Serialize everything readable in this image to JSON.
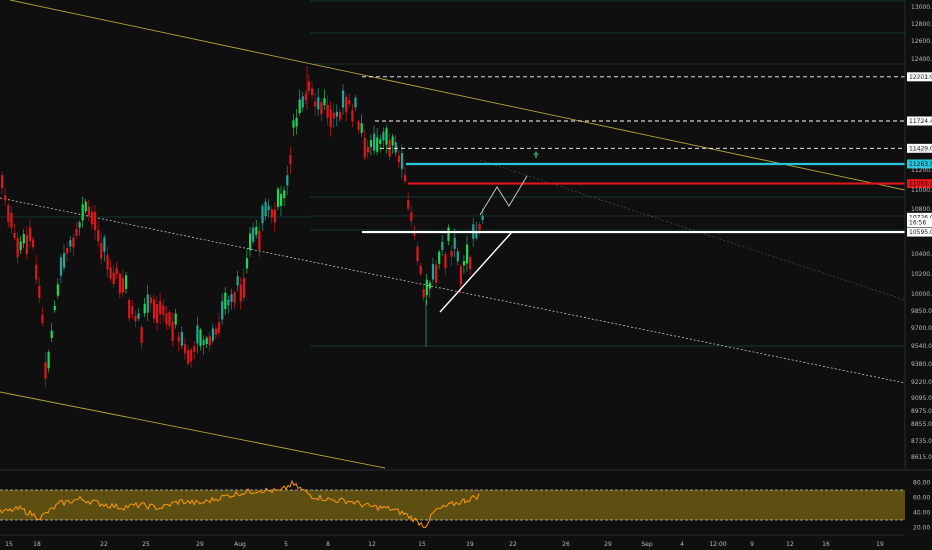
{
  "chart_data": {
    "type": "candlestick",
    "instrument": "BTCUSD",
    "price_axis": {
      "ticks": [
        "13000.0",
        "12800.0",
        "12600.0",
        "12400.0",
        "12200.0",
        "11400.0",
        "11200.0",
        "11000.0",
        "10800.0",
        "10400.0",
        "10200.0",
        "10000.0",
        "9850.0",
        "9700.0",
        "9540.0",
        "9380.0",
        "9220.0",
        "9095.0",
        "8975.0",
        "8855.0",
        "8735.0",
        "8615.0"
      ],
      "tick_values": [
        13000,
        12800,
        12600,
        12400,
        12200,
        11400,
        11200,
        11000,
        10800,
        10400,
        10200,
        10000,
        9850,
        9700,
        9540,
        9380,
        9220,
        9095,
        8975,
        8855,
        8735,
        8615
      ]
    },
    "time_axis": {
      "ticks": [
        "15",
        "18",
        "22",
        "25",
        "29",
        "Aug",
        "5",
        "8",
        "12",
        "15",
        "19",
        "22",
        "26",
        "29",
        "Sep",
        "4",
        "12:00",
        "9",
        "12",
        "16",
        "19"
      ]
    },
    "level_tags": [
      {
        "label": "12201.9",
        "value": 12201.9,
        "style": "dashed",
        "color": "#ffffff"
      },
      {
        "label": "11724.4",
        "value": 11724.4,
        "style": "dashed",
        "color": "#ffffff"
      },
      {
        "label": "11429.0",
        "value": 11429.0,
        "style": "dashed",
        "color": "#ffffff"
      },
      {
        "label": "11263.5",
        "value": 11263.5,
        "style": "solid",
        "color": "#26c6da"
      },
      {
        "label": "11064.4",
        "value": 11064.4,
        "style": "solid",
        "color": "#e0161c"
      },
      {
        "label": "10726.0",
        "value": 10726.0,
        "style": "tag",
        "color": "#ffffff"
      },
      {
        "label": "16:56",
        "value": 10680,
        "style": "tag",
        "color": "#ffffff"
      },
      {
        "label": "10595.0",
        "value": 10595.0,
        "style": "solid",
        "color": "#ffffff"
      }
    ],
    "oscillator": {
      "name": "RSI",
      "ticks": [
        "80.00",
        "60.00",
        "40.00",
        "20.00"
      ],
      "tick_values": [
        80,
        60,
        40,
        20
      ],
      "upper_band": 70,
      "lower_band": 30,
      "line_color": "#ff9800",
      "band_color": "#6b5a12"
    },
    "colors": {
      "up": "#26a69a",
      "up_bright": "#1fd655",
      "down": "#e0161c",
      "trendline": "#b5a43a",
      "projection": "#cfcfcf",
      "target_arrow": "#1e8f57"
    }
  }
}
